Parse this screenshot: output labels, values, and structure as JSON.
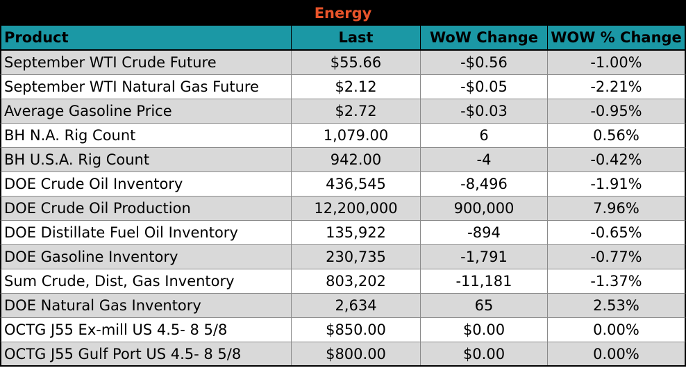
{
  "title": "Energy",
  "columns": [
    "Product",
    "Last",
    "WoW Change",
    "WOW % Change"
  ],
  "rows": [
    [
      "September WTI Crude Future",
      "$55.66",
      "-$0.56",
      "-1.00%"
    ],
    [
      "September WTI Natural Gas Future",
      "$2.12",
      "-$0.05",
      "-2.21%"
    ],
    [
      "Average Gasoline Price",
      "$2.72",
      "-$0.03",
      "-0.95%"
    ],
    [
      "BH N.A. Rig Count",
      "1,079.00",
      "6",
      "0.56%"
    ],
    [
      "BH U.S.A. Rig Count",
      "942.00",
      "-4",
      "-0.42%"
    ],
    [
      "DOE Crude Oil Inventory",
      "436,545",
      "-8,496",
      "-1.91%"
    ],
    [
      "DOE Crude Oil Production",
      "12,200,000",
      "900,000",
      "7.96%"
    ],
    [
      "DOE Distillate Fuel Oil Inventory",
      "135,922",
      "-894",
      "-0.65%"
    ],
    [
      "DOE Gasoline Inventory",
      "230,735",
      "-1,791",
      "-0.77%"
    ],
    [
      "Sum Crude, Dist, Gas Inventory",
      "803,202",
      "-11,181",
      "-1.37%"
    ],
    [
      "DOE Natural Gas Inventory",
      "2,634",
      "65",
      "2.53%"
    ],
    [
      "OCTG J55 Ex-mill US 4.5- 8 5/8",
      "$850.00",
      "$0.00",
      "0.00%"
    ],
    [
      "OCTG J55 Gulf Port US 4.5- 8 5/8",
      "$800.00",
      "$0.00",
      "0.00%"
    ]
  ],
  "colors": {
    "title_bg": "#000000",
    "title_text": "#e8542a",
    "header_bg": "#1b98a5",
    "shade_row": "#d9d9d9"
  }
}
